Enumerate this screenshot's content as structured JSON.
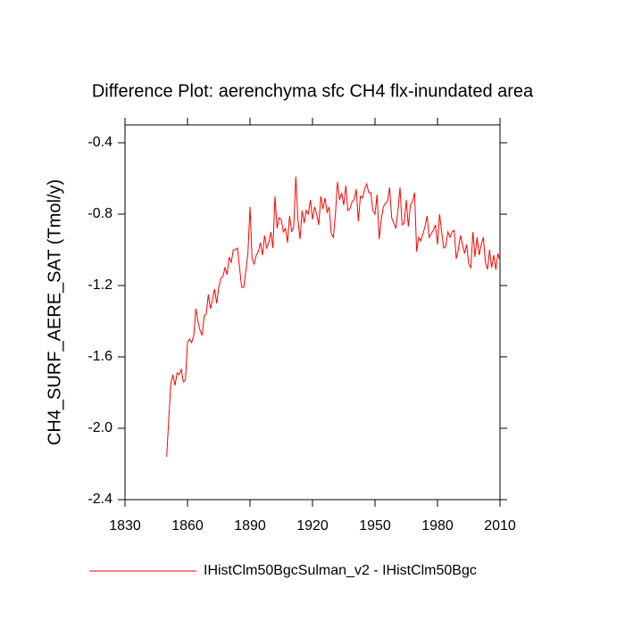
{
  "chart_data": {
    "type": "line",
    "title": "Difference Plot: aerenchyma sfc CH4 flx-inundated area",
    "y_label": "CH4_SURF_AERE_SAT  (Tmol/y)",
    "x": [
      1850,
      1851,
      1852,
      1853,
      1854,
      1855,
      1856,
      1857,
      1858,
      1859,
      1860,
      1861,
      1862,
      1863,
      1864,
      1865,
      1866,
      1867,
      1868,
      1869,
      1870,
      1871,
      1872,
      1873,
      1874,
      1875,
      1876,
      1877,
      1878,
      1879,
      1880,
      1881,
      1882,
      1883,
      1884,
      1885,
      1886,
      1887,
      1888,
      1889,
      1890,
      1891,
      1892,
      1893,
      1894,
      1895,
      1896,
      1897,
      1898,
      1899,
      1900,
      1901,
      1902,
      1903,
      1904,
      1905,
      1906,
      1907,
      1908,
      1909,
      1910,
      1911,
      1912,
      1913,
      1914,
      1915,
      1916,
      1917,
      1918,
      1919,
      1920,
      1921,
      1922,
      1923,
      1924,
      1925,
      1926,
      1927,
      1928,
      1929,
      1930,
      1931,
      1932,
      1933,
      1934,
      1935,
      1936,
      1937,
      1938,
      1939,
      1940,
      1941,
      1942,
      1943,
      1944,
      1945,
      1946,
      1947,
      1948,
      1949,
      1950,
      1951,
      1952,
      1953,
      1954,
      1955,
      1956,
      1957,
      1958,
      1959,
      1960,
      1961,
      1962,
      1963,
      1964,
      1965,
      1966,
      1967,
      1968,
      1969,
      1970,
      1971,
      1972,
      1973,
      1974,
      1975,
      1976,
      1977,
      1978,
      1979,
      1980,
      1981,
      1982,
      1983,
      1984,
      1985,
      1986,
      1987,
      1988,
      1989,
      1990,
      1991,
      1992,
      1993,
      1994,
      1995,
      1996,
      1997,
      1998,
      1999,
      2000,
      2001,
      2002,
      2003,
      2004,
      2005,
      2006,
      2007,
      2008,
      2009,
      2010
    ],
    "series": [
      {
        "name": "IHistClm50BgcSulman_v2 - IHistClm50Bgc",
        "color": "#ff0000",
        "values": [
          -2.16,
          -1.95,
          -1.75,
          -1.7,
          -1.76,
          -1.69,
          -1.7,
          -1.67,
          -1.74,
          -1.73,
          -1.52,
          -1.5,
          -1.52,
          -1.48,
          -1.33,
          -1.4,
          -1.45,
          -1.48,
          -1.37,
          -1.36,
          -1.25,
          -1.33,
          -1.28,
          -1.22,
          -1.3,
          -1.21,
          -1.16,
          -1.15,
          -1.1,
          -1.14,
          -1.04,
          -1.07,
          -1.0,
          -1.0,
          -0.99,
          -1.1,
          -1.21,
          -1.21,
          -1.12,
          -1.02,
          -0.76,
          -1.05,
          -1.08,
          -1.03,
          -1.01,
          -0.96,
          -1.03,
          -0.92,
          -0.99,
          -0.96,
          -0.9,
          -0.99,
          -0.7,
          -0.88,
          -0.82,
          -0.83,
          -0.9,
          -0.88,
          -0.96,
          -0.81,
          -0.9,
          -0.87,
          -0.59,
          -0.83,
          -0.94,
          -0.78,
          -0.85,
          -0.78,
          -0.8,
          -0.72,
          -0.83,
          -0.76,
          -0.8,
          -0.86,
          -0.7,
          -0.77,
          -0.71,
          -0.79,
          -0.76,
          -0.91,
          -0.93,
          -0.8,
          -0.62,
          -0.72,
          -0.68,
          -0.75,
          -0.64,
          -0.78,
          -0.77,
          -0.73,
          -0.72,
          -0.66,
          -0.84,
          -0.7,
          -0.71,
          -0.66,
          -0.63,
          -0.68,
          -0.68,
          -0.78,
          -0.8,
          -0.69,
          -0.94,
          -0.83,
          -0.76,
          -0.74,
          -0.73,
          -0.65,
          -0.82,
          -0.85,
          -0.88,
          -0.78,
          -0.65,
          -0.86,
          -0.85,
          -0.72,
          -0.87,
          -0.75,
          -0.73,
          -0.68,
          -1.01,
          -0.93,
          -0.95,
          -0.91,
          -0.87,
          -0.81,
          -0.93,
          -0.91,
          -0.89,
          -0.86,
          -0.97,
          -0.8,
          -0.9,
          -0.99,
          -0.98,
          -0.9,
          -0.93,
          -0.9,
          -0.89,
          -1.05,
          -1.0,
          -0.92,
          -0.97,
          -1.02,
          -0.97,
          -1.08,
          -1.1,
          -0.9,
          -1.04,
          -0.93,
          -1.03,
          -0.97,
          -0.93,
          -1.07,
          -1.11,
          -1.0,
          -1.1,
          -1.03,
          -1.11,
          -1.02,
          -1.06
        ]
      }
    ],
    "xlim": [
      1830,
      2010
    ],
    "xticks": [
      1830,
      1860,
      1890,
      1920,
      1950,
      1980,
      2010
    ],
    "ylim": [
      -2.4,
      -0.3
    ],
    "yticks": [
      -2.4,
      {
        "value": -2,
        "label": "-2.0"
      },
      -1.6,
      -1.2,
      -0.8,
      -0.4
    ]
  }
}
